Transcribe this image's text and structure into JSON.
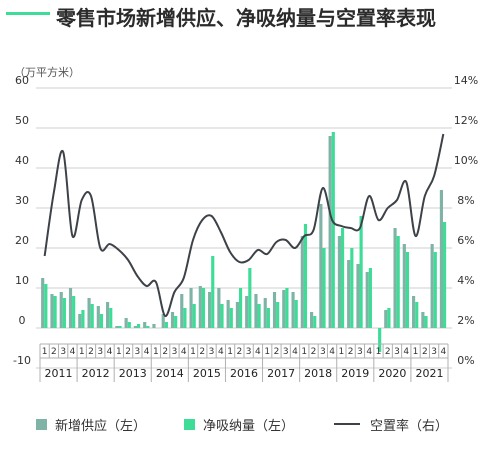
{
  "title": "零售市场新增供应、净吸纳量与空置率表现",
  "colors": {
    "supply": "#7fb3a5",
    "absorption": "#3ddc97",
    "vacancy": "#3d4248",
    "title_bar": "#3ddc97"
  },
  "legend": {
    "supply": "新增供应（左）",
    "absorption": "净吸纳量（左）",
    "vacancy": "空置率（右）"
  },
  "chart_data": {
    "type": "bar",
    "title": "零售市场新增供应、净吸纳量与空置率表现",
    "ylabel": "（万平方米）",
    "ylim": [
      -10,
      60
    ],
    "y_ticks": [
      "-10",
      "0",
      "10",
      "20",
      "30",
      "40",
      "50",
      "60"
    ],
    "y2lim": [
      0,
      14
    ],
    "y2_ticks": [
      "0%",
      "2%",
      "4%",
      "6%",
      "8%",
      "10%",
      "12%",
      "14%"
    ],
    "quarter_labels": [
      "1",
      "2",
      "3",
      "4"
    ],
    "years": [
      "2011",
      "2012",
      "2013",
      "2014",
      "2015",
      "2016",
      "2017",
      "2018",
      "2019",
      "2020",
      "2021"
    ],
    "series": [
      {
        "name": "新增供应（左）",
        "type": "bar",
        "values": [
          12.5,
          8.5,
          9,
          10,
          3.5,
          7.5,
          5.5,
          6.5,
          0.5,
          2.5,
          0.5,
          1.5,
          1,
          3.5,
          4,
          8.5,
          10,
          10.5,
          9,
          10,
          7,
          6.5,
          8,
          8.5,
          7.5,
          9,
          9.5,
          9,
          23,
          4,
          31,
          48,
          23,
          17,
          16,
          14,
          0,
          4.5,
          25,
          21,
          8,
          4,
          21,
          34.5
        ]
      },
      {
        "name": "净吸纳量（左）",
        "type": "bar",
        "values": [
          11,
          8,
          7.5,
          8,
          4.5,
          6,
          3.5,
          5,
          0.5,
          1.5,
          1,
          0.5,
          0,
          1.5,
          3,
          5,
          6,
          10,
          18,
          6,
          5,
          10,
          15,
          6,
          5,
          6.5,
          10,
          7,
          26,
          3,
          20,
          49,
          25,
          20,
          28,
          15,
          -6,
          5,
          23,
          19,
          6.5,
          3,
          19,
          26.5
        ]
      },
      {
        "name": "空置率（右）",
        "type": "line",
        "values": [
          5.6,
          8.8,
          10.8,
          6.6,
          8.4,
          8.6,
          6.0,
          6.2,
          5.9,
          5.4,
          4.6,
          4.1,
          4.3,
          2.6,
          3.8,
          4.5,
          6.4,
          7.4,
          7.6,
          6.8,
          5.8,
          5.3,
          5.4,
          5.9,
          5.7,
          6.3,
          6.4,
          6.0,
          6.6,
          6.9,
          9.0,
          7.4,
          7.1,
          7.0,
          7.0,
          8.6,
          7.4,
          8.0,
          8.4,
          9.3,
          6.6,
          8.6,
          9.6,
          11.7
        ]
      }
    ],
    "grid": true,
    "legend_position": "bottom"
  }
}
